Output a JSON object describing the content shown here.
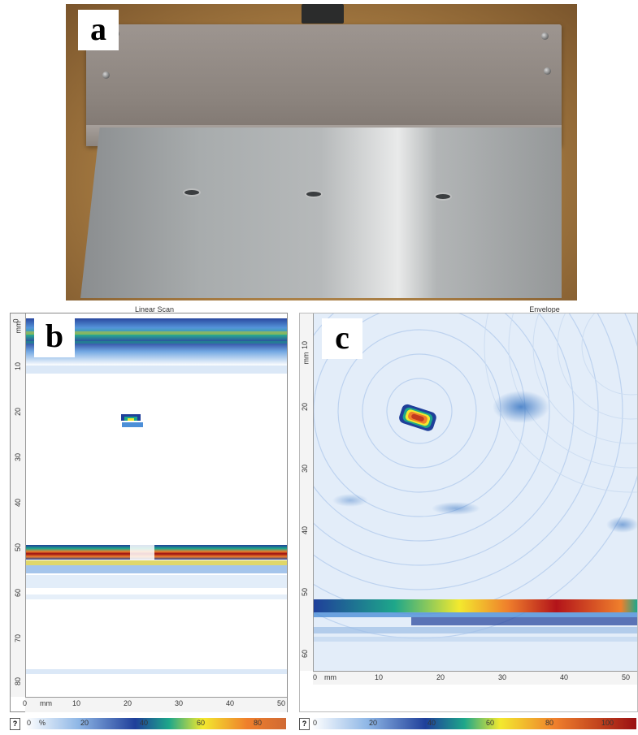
{
  "panels": {
    "a": {
      "label": "a"
    },
    "b": {
      "label": "b",
      "title": "Linear Scan",
      "y_unit": "mm",
      "x_unit": "mm",
      "y_ticks": [
        "0",
        "10",
        "20",
        "30",
        "40",
        "50",
        "60",
        "70",
        "80"
      ],
      "x_ticks": [
        "0",
        "10",
        "20",
        "30",
        "40",
        "50"
      ],
      "colorbar": {
        "unit": "%",
        "ticks": [
          "0",
          "20",
          "40",
          "60",
          "80"
        ],
        "help": "?"
      }
    },
    "c": {
      "label": "c",
      "title": "Envelope",
      "y_unit": "mm",
      "x_unit": "mm",
      "y_ticks": [
        "10",
        "20",
        "30",
        "40",
        "50",
        "60"
      ],
      "x_ticks": [
        "0",
        "10",
        "20",
        "30",
        "40",
        "50"
      ],
      "colorbar": {
        "ticks": [
          "0",
          "20",
          "40",
          "60",
          "80",
          "100"
        ],
        "help": "?"
      }
    }
  },
  "colors": {
    "colormap": [
      "#ffffff",
      "#8fb7e6",
      "#1f3f9a",
      "#1ea78a",
      "#f3e92e",
      "#ef7f2c",
      "#9a0f12"
    ]
  }
}
